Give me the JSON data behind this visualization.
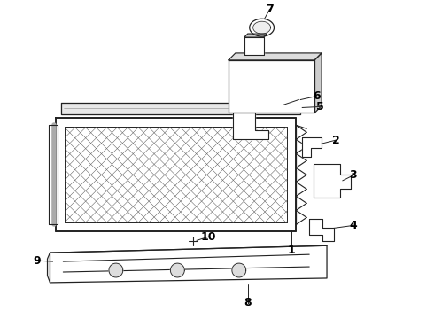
{
  "bg_color": "#ffffff",
  "line_color": "#222222",
  "label_color": "#000000",
  "fig_width": 4.9,
  "fig_height": 3.6,
  "dpi": 100
}
